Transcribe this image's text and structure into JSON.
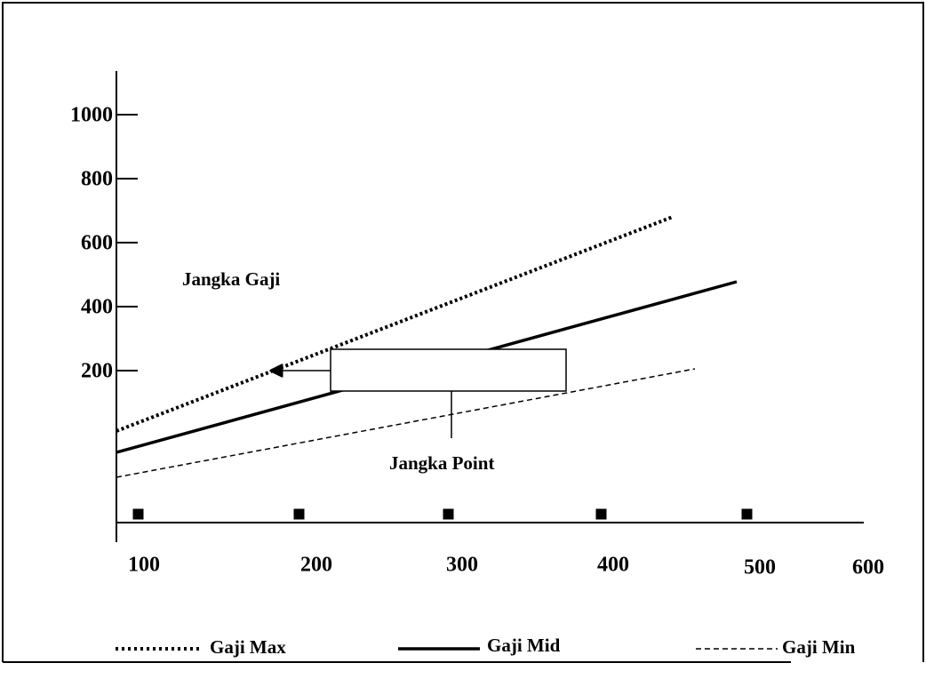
{
  "axes": {
    "y_labels": [
      "1000",
      "800",
      "600",
      "400",
      "200"
    ],
    "x_labels": [
      "100",
      "200",
      "300",
      "400",
      "500",
      "600"
    ]
  },
  "annotations": {
    "range": "Jangka Gaji",
    "point": "Jangka Point"
  },
  "legend": [
    "Gaji Max",
    "Gaji Mid",
    "Gaji Min"
  ]
}
